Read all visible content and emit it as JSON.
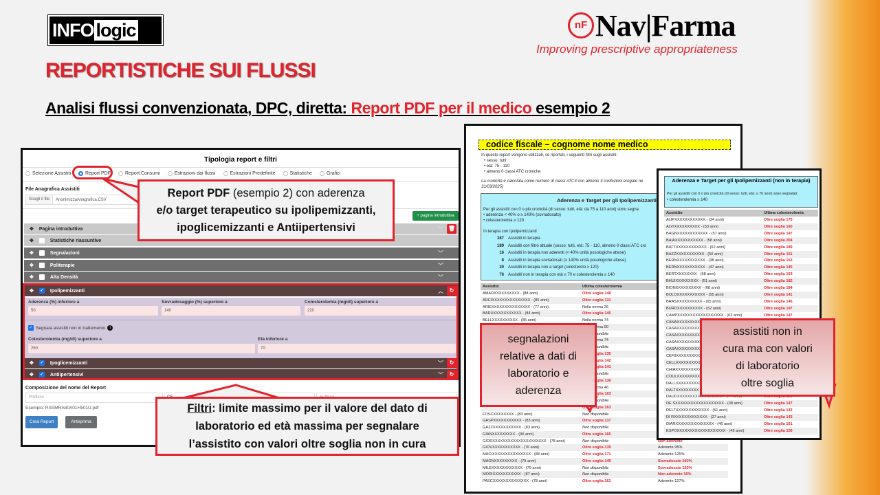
{
  "slide": {
    "logo_left": {
      "text_a": "INFO",
      "text_b": "logic",
      "badge": "srl"
    },
    "logo_right": {
      "mark": "nF",
      "name": "Nav|Farma",
      "tagline": "Improving prescriptive appropriateness"
    },
    "title": "REPORTISTICHE SUI FLUSSI",
    "subtitle": {
      "part1": "Analisi flussi convenzionata, DPC, diretta: ",
      "part2": "Report PDF per il medico",
      "part3": " esempio 2"
    },
    "colors": {
      "accent": "#e0232c",
      "background": "#f2f2f2",
      "orange": "#ee8a1a"
    }
  },
  "app": {
    "title": "Tipologia report e filtri",
    "radios": [
      {
        "label": "Selezione Assistiti",
        "selected": false
      },
      {
        "label": "Report PDF",
        "selected": true
      },
      {
        "label": "Report Consumi",
        "selected": false
      },
      {
        "label": "Estrazioni dai flussi",
        "selected": false
      },
      {
        "label": "Estrazioni Predefinite",
        "selected": false
      },
      {
        "label": "Statistiche",
        "selected": false
      },
      {
        "label": "Grafici",
        "selected": false
      }
    ],
    "file_label": "File Anagrafica Assistiti",
    "file_button": "Scegli il file",
    "file_name": "AnonimizzaAnagrafica.CSV",
    "add_intro_button": "+ pagina introduttiva",
    "sections": [
      {
        "label": "Pagina introduttiva",
        "checked": null
      },
      {
        "label": "Statistiche riassuntive",
        "checked": false
      },
      {
        "label": "Segnalazioni",
        "checked": false
      },
      {
        "label": "Politerapie",
        "checked": false
      },
      {
        "label": "Alta Densità",
        "checked": false
      },
      {
        "label": "Ipolipemizzanti",
        "checked": true
      },
      {
        "label": "Ipoglicemizzanti",
        "checked": true
      },
      {
        "label": "Antiipertensivi",
        "checked": true
      }
    ],
    "ipolipemizzanti": {
      "aderenza_label": "Aderenza (%) inferiore a",
      "aderenza": "50",
      "sovradosaggio_label": "Sovradosaggio (%) superiore a",
      "sovradosaggio": "140",
      "colesterolemia_label": "Colesterolemia (mg/dl) superiore a",
      "colesterolemia": "220",
      "non_trattamento_label": "Segnala assistiti non in trattemento",
      "non_trattamento_checked": true,
      "colesterolemia2_label": "Colesterolemia (mg/dl) superiore a",
      "colesterolemia2": "250",
      "eta_label": "Età inferiore a",
      "eta": "70"
    },
    "report_name_label": "Composizione del nome del Report",
    "prefix_placeholder": "Prefisso",
    "middle_value": "CF",
    "suffix_placeholder": "Suffisso",
    "example": "Esempio: RSSMRA80A01H501U.pdf",
    "create_button": "Crea Report",
    "preview_button": "Anteprima"
  },
  "callouts": {
    "c1": {
      "bold": "Report PDF",
      "rest1": " (esempio 2) con aderenza",
      "line2": "e/o target terapeutico su ipolipemizzanti,",
      "line3": "ipoglicemizzanti  e Antiipertensivi"
    },
    "c2": {
      "label": "Filtri",
      "line1": ": limite massimo  per il valore del dato di",
      "line2": "laboratorio  ed età massima  per segnalare",
      "line3": "l’assistito  con valori oltre soglia non  in cura"
    },
    "c3": {
      "lines": [
        "segnalazioni",
        "relative a dati di",
        "laboratorio  e",
        "aderenza"
      ]
    },
    "c4": {
      "lines": [
        "assistiti  non in",
        "cura ma con valori",
        "di laboratorio",
        "oltre soglia"
      ]
    }
  },
  "doc1": {
    "header": "codice fiscale – cognome nome medico",
    "intro": "In questo report vengono utilizzati, se riportati, i seguenti filtri sugli assistiti:",
    "filters": [
      "sesso: tutti",
      "età: 75 - 110",
      "almeno 0 classi ATC croniche"
    ],
    "note": "La cronicità è calcolata come numero di classi ATC3 con almeno 3 confezioni erogate ne",
    "note2": "31/03/2025)",
    "box_title": "Aderenza e Target per gli Ipolipemizzanti",
    "box_intro": "Per gli assistiti con 0 o più cronicità (di sesso: tutti, età: da 75 a 110 anni) sono segna",
    "box_bullets": [
      "aderenza < 40% o ≥ 140% (sovradosato)",
      "colesterolemia ≥ 120"
    ],
    "box_sub": "In terapia con Ipolipemizzanti",
    "stats": [
      {
        "n": "387",
        "t": "Assistiti in terapia"
      },
      {
        "n": "189",
        "t": "Assistiti con filtro attuale (sesso: tutti, età: 75 - 110, almeno 0 classi ATC cro"
      },
      {
        "n": "16",
        "t": "Assistiti in terapia non aderenti (< 40% unità posologiche attese)"
      },
      {
        "n": "8",
        "t": "Assistiti in terapia sovradosati (≥ 140% unità posologiche attese)"
      },
      {
        "n": "30",
        "t": "Assistiti in terapia non a target (colesterolo ≥ 120)"
      },
      {
        "n": "76",
        "t": "Assistiti non in terapia con età ≤ 70 e colesterolemia ≥ 140"
      }
    ],
    "columns": [
      "Assistito",
      "Ultima colesterolemia",
      "A"
    ],
    "rows": [
      [
        "AMADXXXXXXXXXX - (88 anni)",
        "Oltre soglia 148",
        ""
      ],
      [
        "ARCIXXXXXXXXXXXXXXX - (85 anni)",
        "Oltre soglia 131",
        ""
      ],
      [
        "ARIEXXXXXXXXXXXXXXX - (77 anni)",
        "Nella norma 26",
        ""
      ],
      [
        "BARUXXXXXXXXXXX - (84 anni)",
        "Oltre soglia 145",
        ""
      ],
      [
        "BELLXXXXXXXXXX - (85 anni)",
        "Nella norma 74",
        ""
      ],
      [
        "",
        "Nella norma 50",
        ""
      ],
      [
        "",
        "Non disponibile",
        ""
      ],
      [
        "",
        "Nella norma 74",
        ""
      ],
      [
        "",
        "Non disponibile",
        ""
      ],
      [
        "",
        "Oltre soglia 135",
        ""
      ],
      [
        "",
        "Oltre soglia 142",
        ""
      ],
      [
        "",
        "Oltre soglia 141",
        ""
      ],
      [
        "",
        "Non disponibile",
        ""
      ],
      [
        "",
        "Oltre soglia 136",
        ""
      ],
      [
        "",
        "Nella norma 46",
        ""
      ],
      [
        "",
        "Oltre soglia 163",
        ""
      ],
      [
        "",
        "Non disponibile",
        ""
      ],
      [
        "",
        "Oltre soglia 163",
        ""
      ],
      [
        "FOSCXXXXXXXX - (83 anni)",
        "Non disponibile",
        ""
      ],
      [
        "GASPXXXXXXXXXXX - (83 anni)",
        "Oltre soglia 137",
        ""
      ],
      [
        "GAZZXXXXXXXXXXX - (83 anni)",
        "Non disponibile",
        ""
      ],
      [
        "GIANXXXXXXXXX - (90 anni)",
        "Oltre soglia 165",
        ""
      ],
      [
        "GIORXXXXXXXXXXXXXXXXXXXXX - (78 anni)",
        "Non disponibile",
        "Non aderente"
      ],
      [
        "GIOVXXXXXXXXXXX - (76 anni)",
        "Oltre soglia 139",
        "Aderente 95%"
      ],
      [
        "MACIXXXXXXXXXXXXXXX - (88 anni)",
        "Oltre soglia 171",
        "Aderente 125%"
      ],
      [
        "MAGNXXXXXXXXX - (79 anni)",
        "Oltre soglia 145",
        "Sovradosato 183%"
      ],
      [
        "MILEXXXXXXXXXXXX - (79 anni)",
        "Non disponibile",
        "Sovradosato 153%"
      ],
      [
        "MORIXXXXXXXXXXX - (87 anni)",
        "Non disponibile",
        "Non aderente 15%"
      ],
      [
        "PASCXXXXXXXXXXXXXX - (78 anni)",
        "Oltre soglia 161",
        "Aderente 127%"
      ]
    ]
  },
  "doc2": {
    "box_title": "Aderenza e Target per gli Ipolipemizzanti (non in terapia)",
    "box_intro": "Per gli assistiti con 0 o più cronicità (di sesso: tutti, età: ≤ 70 anni) sono segnalati:",
    "box_bullet": "colesterolemia ≥ 140",
    "columns": [
      "Assistito",
      "Ultima colesterolemia"
    ],
    "rows": [
      [
        "ALIPXXXXXXXXXXXX - (34 anni)",
        "Oltre soglia 175"
      ],
      [
        "ALVIXXXXXXXXXX - (53 anni)",
        "Oltre soglia 160"
      ],
      [
        "BAGNXXXXXXXXXXXX - (57 anni)",
        "Oltre soglia 147"
      ],
      [
        "BAIAXXXXXXXXXXX - (58 anni)",
        "Oltre soglia 204"
      ],
      [
        "BATTXXXXXXXXXXXX - (62 anni)",
        "Oltre soglia 189"
      ],
      [
        "BAZZXXXXXXXXXXX - (50 anni)",
        "Oltre soglia 151"
      ],
      [
        "BERNXXXXXXXXXXX - (38 anni)",
        "Oltre soglia 153"
      ],
      [
        "BERNXXXXXXXXXXX - (47 anni)",
        "Oltre soglia 145"
      ],
      [
        "BERTXXXXXXXX - (68 anni)",
        "Oltre soglia 163"
      ],
      [
        "BHUIXXXXXXXXX - (51 anni)",
        "Oltre soglia 182"
      ],
      [
        "BIONXXXXXXXXXX - (68 anni)",
        "Oltre soglia 184"
      ],
      [
        "BOLOXXXXXXXXXXX - (55 anni)",
        "Oltre soglia 141"
      ],
      [
        "BRASXXXXXXXXXX - (65 anni)",
        "Oltre soglia 146"
      ],
      [
        "BURDXXXXXXXXXX - (62 anni)",
        "Oltre soglia 197"
      ],
      [
        "CAMPXXXXXXXXXXXXXXXXXX - (63 anni)",
        "Oltre soglia 147"
      ],
      [
        "CANAXXXXXXXXX - (50",
        ""
      ],
      [
        "CASAXXXXXXXXXXXX",
        ""
      ],
      [
        "CASAXXXXXXXXXXXX",
        ""
      ],
      [
        "CASAXXXXXXXXXXXX",
        ""
      ],
      [
        "CASAXXXXXXXXXXXX",
        ""
      ],
      [
        "CEF0XXXXXXXXXXX",
        ""
      ],
      [
        "CELLXXXXXXXXXX",
        ""
      ],
      [
        "CHIAXXXXXXXXXXX",
        ""
      ],
      [
        "COULXXXXXXXXXXX",
        ""
      ],
      [
        "DALLXXXXXXXXXX",
        ""
      ],
      [
        "DALTXXXXXXXXX - (4",
        ""
      ],
      [
        "DAUDXXXXXXXXXXXXXXXXXX - (44 anni)",
        "Oltre soglia 153"
      ],
      [
        "DE SXXXXXXXXXXXXXXXXXXX - (38 anni)",
        "Oltre soglia 147"
      ],
      [
        "DELTXXXXXXXXXXXXX - (51 anni)",
        "Oltre soglia 143"
      ],
      [
        "DI RXXXXXXXXXXXXX - (27 anni)",
        "Oltre soglia 143"
      ],
      [
        "DIARXXXXXXXXXXXXXXX - (46 anni)",
        "Oltre soglia 161"
      ],
      [
        "ESPOXXXXXXXXXXXXXXXXXXX - (49 anni)",
        "Oltre soglia 150"
      ]
    ]
  }
}
